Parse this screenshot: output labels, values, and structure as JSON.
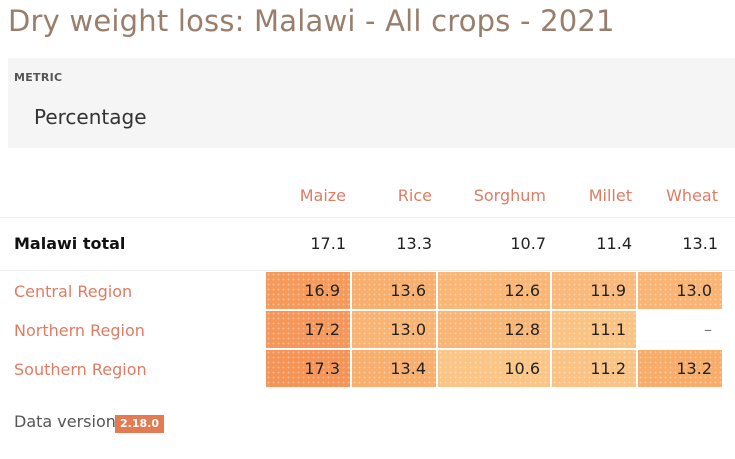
{
  "title": "Dry weight loss: Malawi - All crops - 2021",
  "metric": {
    "label": "METRIC",
    "value": "Percentage"
  },
  "columns": [
    "Maize",
    "Rice",
    "Sorghum",
    "Millet",
    "Wheat"
  ],
  "total_row": {
    "label": "Malawi total",
    "values": [
      "17.1",
      "13.3",
      "10.7",
      "11.4",
      "13.1"
    ]
  },
  "rows": [
    {
      "label": "Central Region",
      "values": [
        "16.9",
        "13.6",
        "12.6",
        "11.9",
        "13.0"
      ]
    },
    {
      "label": "Northern Region",
      "values": [
        "17.2",
        "13.0",
        "12.8",
        "11.1",
        "–"
      ]
    },
    {
      "label": "Southern Region",
      "values": [
        "17.3",
        "13.4",
        "10.6",
        "11.2",
        "13.2"
      ]
    }
  ],
  "footer": {
    "label": "Data version",
    "version": "2.18.0"
  },
  "colors": {
    "accent": "#e07b63",
    "cell_dark": "#f59a5a",
    "cell_mid": "#f8ae6c",
    "cell_light": "#fbc585"
  }
}
